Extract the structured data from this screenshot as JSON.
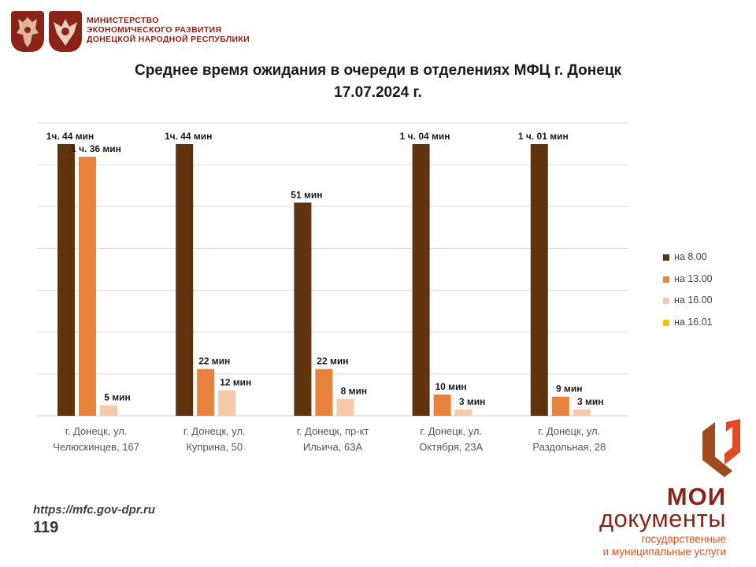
{
  "header": {
    "ministry_lines": [
      "МИНИСТЕРСТВО",
      "ЭКОНОМИЧЕСКОГО РАЗВИТИЯ",
      "ДОНЕЦКОЙ НАРОДНОЙ РЕСПУБЛИКИ"
    ]
  },
  "footer": {
    "url": "https://mfc.gov-dpr.ru",
    "page_number": "119"
  },
  "logo": {
    "line1": "МОИ",
    "line2": "документы",
    "line3": "государственные",
    "line4": "и муниципальные услуги"
  },
  "colors": {
    "s800": "#5e330d",
    "s1300": "#e8823c",
    "s1600": "#f6c9a8",
    "s1601": "#f2c21a",
    "grid": "#d9d9d9",
    "brand": "#8a2419"
  },
  "chart_data": {
    "type": "bar",
    "title_lines": [
      "Среднее время ожидания в очереди в отделениях МФЦ г. Донецк",
      "17.07.2024 г."
    ],
    "categories": [
      [
        "г. Донецк, ул.",
        "Челюскинцев, 167"
      ],
      [
        "г. Донецк, ул.",
        "Куприна, 50"
      ],
      [
        "г. Донецк, пр-кт",
        "Ильича, 63А"
      ],
      [
        "г. Донецк, ул.",
        "Октября, 23А"
      ],
      [
        "г. Донецк, ул.",
        "Раздольная, 28"
      ]
    ],
    "series": [
      {
        "name": "на 8.00",
        "values": [
          104,
          104,
          51,
          64,
          61
        ],
        "labels": [
          "1ч. 44 мин",
          "1ч. 44 мин",
          "51 мин",
          "1 ч. 04 мин",
          "1 ч. 01 мин"
        ]
      },
      {
        "name": "на 13.00",
        "values": [
          96,
          22,
          22,
          10,
          9
        ],
        "labels": [
          "1 ч. 36 мин",
          "22 мин",
          "22 мин",
          "10 мин",
          "9 мин"
        ]
      },
      {
        "name": "на 16.00",
        "values": [
          5,
          12,
          8,
          3,
          3
        ],
        "labels": [
          "5 мин",
          "12 мин",
          "8 мин",
          "3 мин",
          "3 мин"
        ]
      },
      {
        "name": "на 16.01",
        "values": [
          null,
          null,
          null,
          null,
          null
        ],
        "labels": [
          "",
          "",
          "",
          "",
          ""
        ]
      }
    ],
    "unit": "мин",
    "axis_break": true,
    "grid": true,
    "legend_position": "right",
    "xlabel": "",
    "ylabel": ""
  }
}
